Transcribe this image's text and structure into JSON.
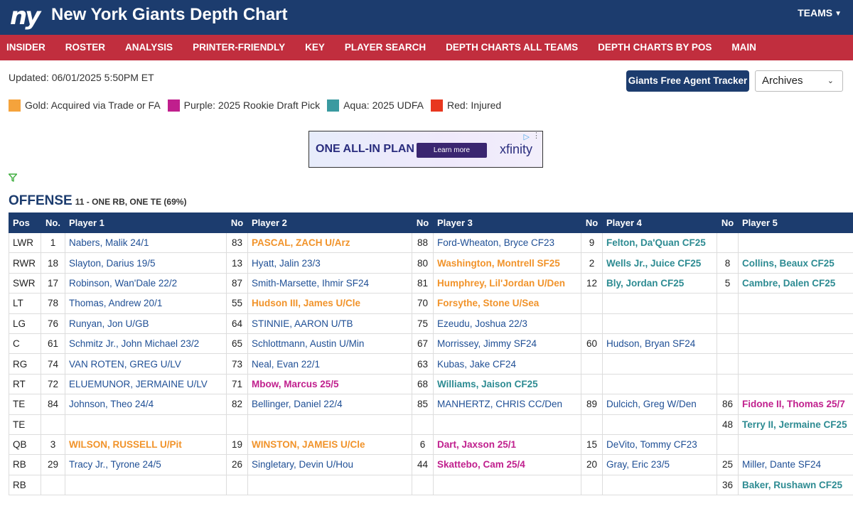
{
  "header": {
    "logo_text": "ny",
    "title": "New York Giants Depth Chart",
    "teams_label": "TEAMS"
  },
  "nav": [
    "INSIDER",
    "ROSTER",
    "ANALYSIS",
    "PRINTER-FRIENDLY",
    "KEY",
    "PLAYER SEARCH",
    "DEPTH CHARTS ALL TEAMS",
    "DEPTH CHARTS BY POS",
    "MAIN"
  ],
  "updated": "Updated: 06/01/2025 5:50PM ET",
  "fa_tracker_label": "Giants Free Agent Tracker",
  "archives": {
    "selected": "Archives"
  },
  "legend": [
    {
      "color": "#f5a33c",
      "label": "Gold: Acquired via Trade or FA"
    },
    {
      "color": "#c01f8d",
      "label": "Purple: 2025 Rookie Draft Pick"
    },
    {
      "color": "#3a9aa0",
      "label": "Aqua: 2025 UDFA"
    },
    {
      "color": "#e8371f",
      "label": "Red: Injured"
    }
  ],
  "ad": {
    "headline": "ONE ALL-IN PLAN",
    "button": "Learn more",
    "brand": "xfinity"
  },
  "section": {
    "title": "OFFENSE",
    "subtitle": "11 - ONE RB, ONE TE (69%)"
  },
  "table_headers": [
    "Pos",
    "No.",
    "Player 1",
    "No",
    "Player 2",
    "No",
    "Player 3",
    "No",
    "Player 4",
    "No",
    "Player 5"
  ],
  "rows": [
    {
      "pos": "LWR",
      "players": [
        {
          "no": "1",
          "name": "Nabers, Malik 24/1",
          "tag": "normal"
        },
        {
          "no": "83",
          "name": "PASCAL, ZACH U/Arz",
          "tag": "gold"
        },
        {
          "no": "88",
          "name": "Ford-Wheaton, Bryce CF23",
          "tag": "normal"
        },
        {
          "no": "9",
          "name": "Felton, Da'Quan CF25",
          "tag": "aqua"
        },
        {
          "no": "",
          "name": "",
          "tag": "normal"
        }
      ]
    },
    {
      "pos": "RWR",
      "players": [
        {
          "no": "18",
          "name": "Slayton, Darius 19/5",
          "tag": "normal"
        },
        {
          "no": "13",
          "name": "Hyatt, Jalin 23/3",
          "tag": "normal"
        },
        {
          "no": "80",
          "name": "Washington, Montrell SF25",
          "tag": "gold"
        },
        {
          "no": "2",
          "name": "Wells Jr., Juice CF25",
          "tag": "aqua"
        },
        {
          "no": "8",
          "name": "Collins, Beaux CF25",
          "tag": "aqua"
        }
      ]
    },
    {
      "pos": "SWR",
      "players": [
        {
          "no": "17",
          "name": "Robinson, Wan'Dale 22/2",
          "tag": "normal"
        },
        {
          "no": "87",
          "name": "Smith-Marsette, Ihmir SF24",
          "tag": "normal"
        },
        {
          "no": "81",
          "name": "Humphrey, Lil'Jordan U/Den",
          "tag": "gold"
        },
        {
          "no": "12",
          "name": "Bly, Jordan CF25",
          "tag": "aqua"
        },
        {
          "no": "5",
          "name": "Cambre, Dalen CF25",
          "tag": "aqua"
        }
      ]
    },
    {
      "pos": "LT",
      "players": [
        {
          "no": "78",
          "name": "Thomas, Andrew 20/1",
          "tag": "normal"
        },
        {
          "no": "55",
          "name": "Hudson III, James U/Cle",
          "tag": "gold"
        },
        {
          "no": "70",
          "name": "Forsythe, Stone U/Sea",
          "tag": "gold"
        },
        {
          "no": "",
          "name": "",
          "tag": "normal"
        },
        {
          "no": "",
          "name": "",
          "tag": "normal"
        }
      ]
    },
    {
      "pos": "LG",
      "players": [
        {
          "no": "76",
          "name": "Runyan, Jon U/GB",
          "tag": "normal"
        },
        {
          "no": "64",
          "name": "STINNIE, AARON U/TB",
          "tag": "normal"
        },
        {
          "no": "75",
          "name": "Ezeudu, Joshua 22/3",
          "tag": "normal"
        },
        {
          "no": "",
          "name": "",
          "tag": "normal"
        },
        {
          "no": "",
          "name": "",
          "tag": "normal"
        }
      ]
    },
    {
      "pos": "C",
      "players": [
        {
          "no": "61",
          "name": "Schmitz Jr., John Michael 23/2",
          "tag": "normal"
        },
        {
          "no": "65",
          "name": "Schlottmann, Austin U/Min",
          "tag": "normal"
        },
        {
          "no": "67",
          "name": "Morrissey, Jimmy SF24",
          "tag": "normal"
        },
        {
          "no": "60",
          "name": "Hudson, Bryan SF24",
          "tag": "normal"
        },
        {
          "no": "",
          "name": "",
          "tag": "normal"
        }
      ]
    },
    {
      "pos": "RG",
      "players": [
        {
          "no": "74",
          "name": "VAN ROTEN, GREG U/LV",
          "tag": "normal"
        },
        {
          "no": "73",
          "name": "Neal, Evan 22/1",
          "tag": "normal"
        },
        {
          "no": "63",
          "name": "Kubas, Jake CF24",
          "tag": "normal"
        },
        {
          "no": "",
          "name": "",
          "tag": "normal"
        },
        {
          "no": "",
          "name": "",
          "tag": "normal"
        }
      ]
    },
    {
      "pos": "RT",
      "players": [
        {
          "no": "72",
          "name": "ELUEMUNOR, JERMAINE U/LV",
          "tag": "normal"
        },
        {
          "no": "71",
          "name": "Mbow, Marcus 25/5",
          "tag": "purple"
        },
        {
          "no": "68",
          "name": "Williams, Jaison CF25",
          "tag": "aqua"
        },
        {
          "no": "",
          "name": "",
          "tag": "normal"
        },
        {
          "no": "",
          "name": "",
          "tag": "normal"
        }
      ]
    },
    {
      "pos": "TE",
      "players": [
        {
          "no": "84",
          "name": "Johnson, Theo 24/4",
          "tag": "normal"
        },
        {
          "no": "82",
          "name": "Bellinger, Daniel 22/4",
          "tag": "normal"
        },
        {
          "no": "85",
          "name": "MANHERTZ, CHRIS CC/Den",
          "tag": "normal"
        },
        {
          "no": "89",
          "name": "Dulcich, Greg W/Den",
          "tag": "normal"
        },
        {
          "no": "86",
          "name": "Fidone II, Thomas 25/7",
          "tag": "purple"
        }
      ]
    },
    {
      "pos": "TE",
      "players": [
        {
          "no": "",
          "name": "",
          "tag": "normal"
        },
        {
          "no": "",
          "name": "",
          "tag": "normal"
        },
        {
          "no": "",
          "name": "",
          "tag": "normal"
        },
        {
          "no": "",
          "name": "",
          "tag": "normal"
        },
        {
          "no": "48",
          "name": "Terry II, Jermaine CF25",
          "tag": "aqua"
        }
      ]
    },
    {
      "pos": "QB",
      "players": [
        {
          "no": "3",
          "name": "WILSON, RUSSELL U/Pit",
          "tag": "gold"
        },
        {
          "no": "19",
          "name": "WINSTON, JAMEIS U/Cle",
          "tag": "gold"
        },
        {
          "no": "6",
          "name": "Dart, Jaxson 25/1",
          "tag": "purple"
        },
        {
          "no": "15",
          "name": "DeVito, Tommy CF23",
          "tag": "normal"
        },
        {
          "no": "",
          "name": "",
          "tag": "normal"
        }
      ]
    },
    {
      "pos": "RB",
      "players": [
        {
          "no": "29",
          "name": "Tracy Jr., Tyrone 24/5",
          "tag": "normal"
        },
        {
          "no": "26",
          "name": "Singletary, Devin U/Hou",
          "tag": "normal"
        },
        {
          "no": "44",
          "name": "Skattebo, Cam 25/4",
          "tag": "purple"
        },
        {
          "no": "20",
          "name": "Gray, Eric 23/5",
          "tag": "normal"
        },
        {
          "no": "25",
          "name": "Miller, Dante SF24",
          "tag": "normal"
        }
      ]
    },
    {
      "pos": "RB",
      "players": [
        {
          "no": "",
          "name": "",
          "tag": "normal"
        },
        {
          "no": "",
          "name": "",
          "tag": "normal"
        },
        {
          "no": "",
          "name": "",
          "tag": "normal"
        },
        {
          "no": "",
          "name": "",
          "tag": "normal"
        },
        {
          "no": "36",
          "name": "Baker, Rushawn CF25",
          "tag": "aqua"
        }
      ]
    }
  ]
}
